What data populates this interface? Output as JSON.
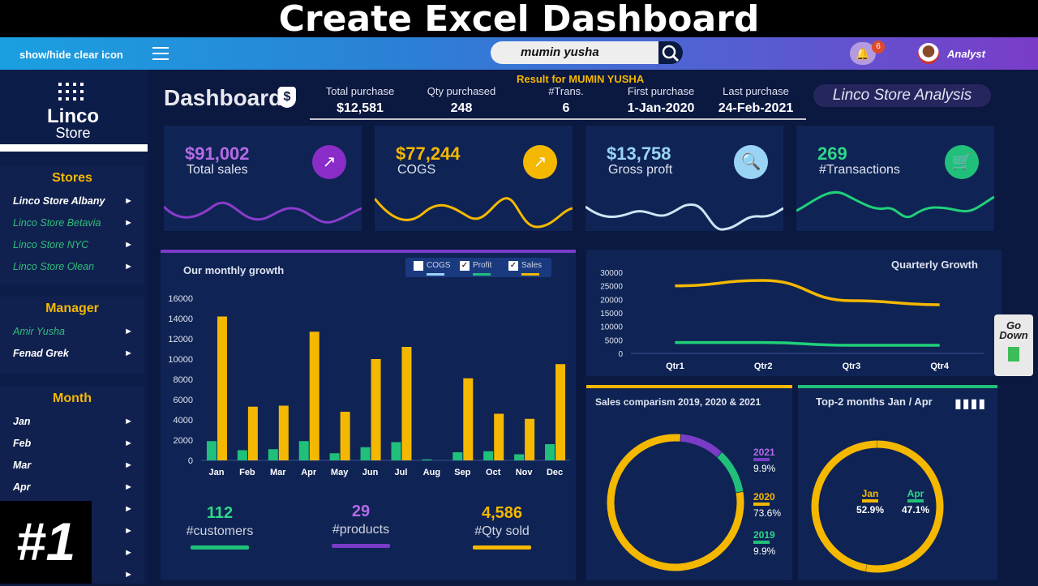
{
  "banner": {
    "title": "Create Excel Dashboard"
  },
  "topbar": {
    "toggle_label": "show/hide clear icon",
    "search_value": "mumin yusha",
    "notification_count": "6",
    "user_role": "Analyst"
  },
  "sidebar": {
    "logo_name": "Linco",
    "logo_sub": "Store",
    "stores_title": "Stores",
    "stores": [
      "Linco Store Albany",
      "Linco Store Betavia",
      "Linco Store NYC",
      "Linco Store Olean"
    ],
    "manager_title": "Manager",
    "managers": [
      "Amir Yusha",
      "Fenad Grek"
    ],
    "month_title": "Month",
    "months": [
      "Jan",
      "Feb",
      "Mar",
      "Apr"
    ]
  },
  "header": {
    "title": "Dashboard",
    "shield_symbol": "$",
    "result_text": "Result for MUMIN YUSHA",
    "analysis_label": "Linco Store Analysis",
    "stats": [
      {
        "label": "Total purchase",
        "value": "$12,581"
      },
      {
        "label": "Qty purchased",
        "value": "248"
      },
      {
        "label": "#Trans.",
        "value": "6"
      },
      {
        "label": "First purchase",
        "value": "1-Jan-2020"
      },
      {
        "label": "Last purchase",
        "value": "24-Feb-2021"
      }
    ]
  },
  "kpis": [
    {
      "value": "$91,002",
      "label": "Total sales",
      "color": "#b46ae6"
    },
    {
      "value": "$77,244",
      "label": "COGS",
      "color": "#f5b800"
    },
    {
      "value": "$13,758",
      "label": "Gross proft",
      "color": "#9ad4f5"
    },
    {
      "value": "269",
      "label": "#Transactions",
      "color": "#2fd68a"
    }
  ],
  "monthly": {
    "title": "Our monthly growth",
    "legend": [
      "COGS",
      "Profit",
      "Sales"
    ]
  },
  "quarterly": {
    "title": "Quarterly Growth"
  },
  "comparison": {
    "title": "Sales comparism 2019, 2020  & 2021",
    "items": [
      {
        "year": "2021",
        "pct": "9.9%"
      },
      {
        "year": "2020",
        "pct": "73.6%"
      },
      {
        "year": "2019",
        "pct": "9.9%"
      }
    ]
  },
  "topmonths": {
    "title": "Top-2 months Jan / Apr",
    "items": [
      {
        "label": "Jan",
        "pct": "52.9%"
      },
      {
        "label": "Apr",
        "pct": "47.1%"
      }
    ]
  },
  "bottom": [
    {
      "value": "112",
      "label": "#customers"
    },
    {
      "value": "29",
      "label": "#products"
    },
    {
      "value": "4,586",
      "label": "#Qty sold"
    }
  ],
  "episode": "#1",
  "go_down": {
    "line1": "Go",
    "line2": "Down"
  },
  "chart_data": [
    {
      "type": "bar",
      "title": "Our monthly growth",
      "categories": [
        "Jan",
        "Feb",
        "Mar",
        "Apr",
        "May",
        "Jun",
        "Jul",
        "Aug",
        "Sep",
        "Oct",
        "Nov",
        "Dec"
      ],
      "series": [
        {
          "name": "Profit",
          "values": [
            1900,
            1000,
            1100,
            1900,
            700,
            1300,
            1800,
            100,
            800,
            900,
            600,
            1600
          ],
          "color": "#20c07a"
        },
        {
          "name": "Sales",
          "values": [
            14200,
            5300,
            5400,
            12700,
            4800,
            10000,
            11200,
            0,
            8100,
            4600,
            4100,
            9500
          ],
          "color": "#f5b800"
        }
      ],
      "ylim": [
        0,
        16000
      ],
      "yticks": [
        0,
        2000,
        4000,
        6000,
        8000,
        10000,
        12000,
        14000,
        16000
      ]
    },
    {
      "type": "line",
      "title": "Quarterly Growth",
      "categories": [
        "Qtr1",
        "Qtr2",
        "Qtr3",
        "Qtr4"
      ],
      "series": [
        {
          "name": "Sales",
          "values": [
            25000,
            27000,
            19500,
            18000
          ],
          "color": "#f5b800"
        },
        {
          "name": "Profit",
          "values": [
            4000,
            4000,
            3000,
            3000
          ],
          "color": "#20d07a"
        }
      ],
      "ylim": [
        0,
        30000
      ],
      "yticks": [
        0,
        5000,
        10000,
        15000,
        20000,
        25000,
        30000
      ]
    },
    {
      "type": "pie",
      "title": "Sales comparism 2019, 2020  & 2021",
      "labels": [
        "2021",
        "2020",
        "2019"
      ],
      "values": [
        9.9,
        73.6,
        9.9
      ]
    },
    {
      "type": "pie",
      "title": "Top-2 months Jan / Apr",
      "labels": [
        "Jan",
        "Apr"
      ],
      "values": [
        52.9,
        47.1
      ]
    }
  ]
}
